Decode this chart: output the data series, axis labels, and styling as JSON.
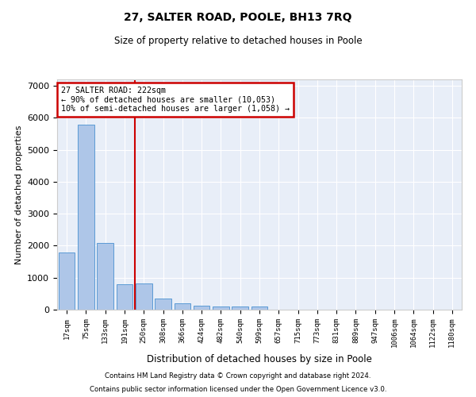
{
  "title": "27, SALTER ROAD, POOLE, BH13 7RQ",
  "subtitle": "Size of property relative to detached houses in Poole",
  "xlabel": "Distribution of detached houses by size in Poole",
  "ylabel": "Number of detached properties",
  "footer_line1": "Contains HM Land Registry data © Crown copyright and database right 2024.",
  "footer_line2": "Contains public sector information licensed under the Open Government Licence v3.0.",
  "bar_color": "#aec6e8",
  "bar_edge_color": "#5b9bd5",
  "annotation_box_color": "#cc0000",
  "vline_color": "#cc0000",
  "subject_line": "27 SALTER ROAD: 222sqm",
  "annotation_line2": "← 90% of detached houses are smaller (10,053)",
  "annotation_line3": "10% of semi-detached houses are larger (1,058) →",
  "categories": [
    "17sqm",
    "75sqm",
    "133sqm",
    "191sqm",
    "250sqm",
    "308sqm",
    "366sqm",
    "424sqm",
    "482sqm",
    "540sqm",
    "599sqm",
    "657sqm",
    "715sqm",
    "773sqm",
    "831sqm",
    "889sqm",
    "947sqm",
    "1006sqm",
    "1064sqm",
    "1122sqm",
    "1180sqm"
  ],
  "values": [
    1780,
    5780,
    2090,
    800,
    810,
    340,
    200,
    120,
    110,
    100,
    90,
    0,
    0,
    0,
    0,
    0,
    0,
    0,
    0,
    0,
    0
  ],
  "vline_x": 3.55,
  "ylim": [
    0,
    7200
  ],
  "yticks": [
    0,
    1000,
    2000,
    3000,
    4000,
    5000,
    6000,
    7000
  ],
  "background_color": "#e8eef8"
}
